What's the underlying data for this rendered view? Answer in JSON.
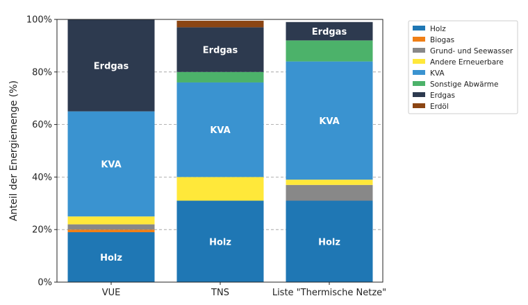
{
  "chart_data": {
    "type": "bar",
    "stacked": true,
    "ylabel": "Anteil der Energiemenge (%)",
    "xlabel": "",
    "ylim": [
      0,
      100
    ],
    "yticks": [
      "0%",
      "20%",
      "40%",
      "60%",
      "80%",
      "100%"
    ],
    "grid": "horizontal dashed",
    "legend_position": "right-outside-top",
    "categories": [
      "VUE",
      "TNS",
      "Liste \"Thermische Netze\""
    ],
    "series": [
      {
        "name": "Holz",
        "color": "#1f77b4",
        "values": [
          19,
          31,
          31
        ]
      },
      {
        "name": "Biogas",
        "color": "#f07f16",
        "values": [
          1,
          0,
          0
        ]
      },
      {
        "name": "Grund- und Seewasser",
        "color": "#888888",
        "values": [
          2,
          0,
          6
        ]
      },
      {
        "name": "Andere Erneuerbare",
        "color": "#ffe83a",
        "values": [
          3,
          9,
          2
        ]
      },
      {
        "name": "KVA",
        "color": "#3a93d0",
        "values": [
          40,
          36,
          45
        ]
      },
      {
        "name": "Sonstige Abwärme",
        "color": "#4cb26a",
        "values": [
          0,
          4,
          8
        ]
      },
      {
        "name": "Erdgas",
        "color": "#2d3a4f",
        "values": [
          35,
          17,
          7
        ]
      },
      {
        "name": "Erdöl",
        "color": "#8b4513",
        "values": [
          0,
          2.5,
          0
        ]
      }
    ],
    "segment_labels": [
      {
        "series": "Holz",
        "text": "Holz"
      },
      {
        "series": "KVA",
        "text": "KVA"
      },
      {
        "series": "Erdgas",
        "text": "Erdgas"
      }
    ]
  }
}
